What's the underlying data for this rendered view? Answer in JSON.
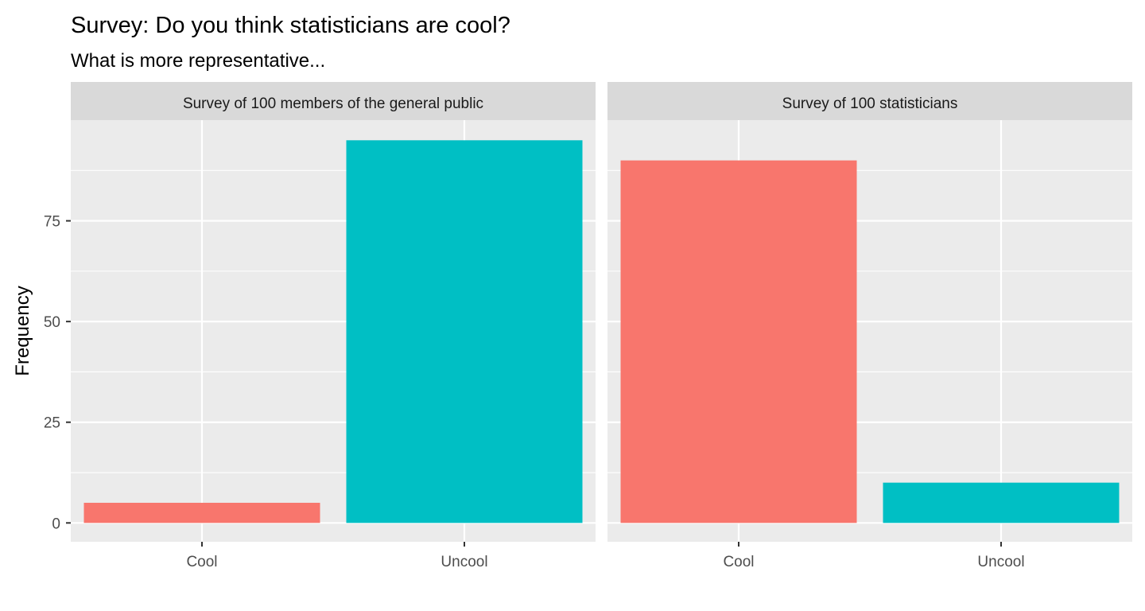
{
  "chart_data": {
    "type": "bar",
    "title": "Survey: Do you think statisticians are cool?",
    "subtitle": "What is more representative...",
    "xlabel": "",
    "ylabel": "Frequency",
    "ylim": [
      0,
      100
    ],
    "yticks": [
      0,
      25,
      50,
      75
    ],
    "grid": true,
    "legend": "none",
    "colors": {
      "Cool": "#F8766D",
      "Uncool": "#00BFC4",
      "panel_background": "#EBEBEB",
      "strip_background": "#D9D9D9",
      "grid": "#FFFFFF"
    },
    "categories": [
      "Cool",
      "Uncool"
    ],
    "facets": [
      {
        "label": "Survey of 100 members of the general public",
        "values": [
          5,
          95
        ]
      },
      {
        "label": "Survey of 100 statisticians",
        "values": [
          90,
          10
        ]
      }
    ]
  }
}
